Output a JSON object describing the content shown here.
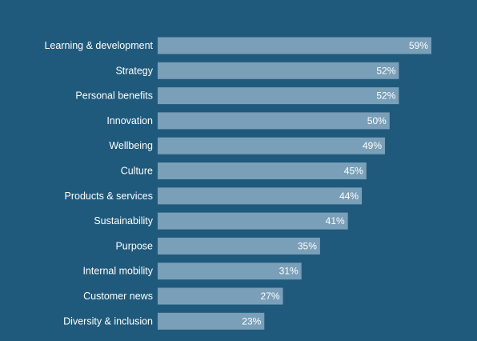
{
  "colors": {
    "background": "#1f5a7c",
    "bar": "#7a9fb8",
    "text": "#ffffff"
  },
  "chart_data": {
    "type": "bar",
    "orientation": "horizontal",
    "title": "",
    "xlabel": "",
    "ylabel": "",
    "grid": false,
    "legend": "none",
    "xlim": [
      0,
      59
    ],
    "categories": [
      "Learning & development",
      "Strategy",
      "Personal benefits",
      "Innovation",
      "Wellbeing",
      "Culture",
      "Products & services",
      "Sustainability",
      "Purpose",
      "Internal mobility",
      "Customer news",
      "Diversity & inclusion"
    ],
    "values": [
      59,
      52,
      52,
      50,
      49,
      45,
      44,
      41,
      35,
      31,
      27,
      23
    ],
    "value_labels": [
      "59%",
      "52%",
      "52%",
      "50%",
      "49%",
      "45%",
      "44%",
      "41%",
      "35%",
      "31%",
      "27%",
      "23%"
    ]
  }
}
